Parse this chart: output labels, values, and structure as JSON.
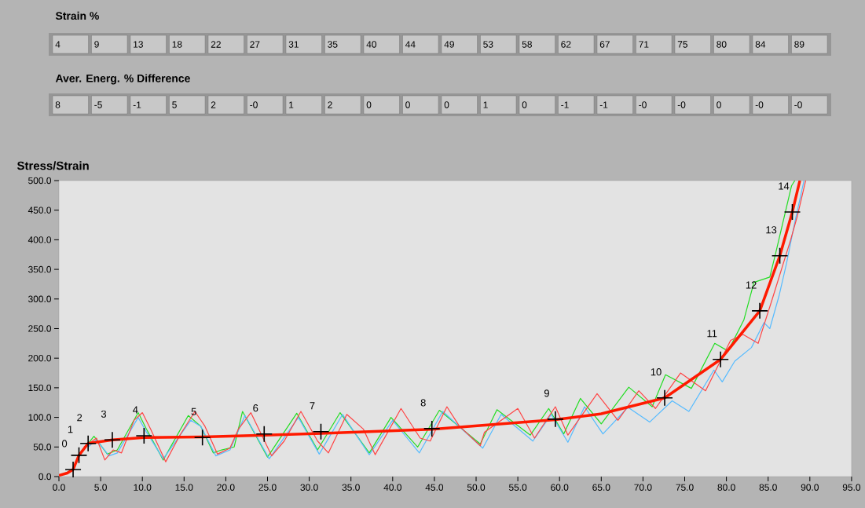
{
  "chart_data": [
    {
      "type": "other",
      "title": "Strain %",
      "annotations": [
        "4",
        "9",
        "13",
        "18",
        "22",
        "27",
        "31",
        "35",
        "40",
        "44",
        "49",
        "53",
        "58",
        "62",
        "67",
        "71",
        "75",
        "80",
        "84",
        "89"
      ]
    },
    {
      "type": "other",
      "title": "Aver. Energ. % Difference",
      "annotations": [
        "8",
        "-5",
        "-1",
        "5",
        "2",
        "-0",
        "1",
        "2",
        "0",
        "0",
        "0",
        "1",
        "0",
        "-1",
        "-1",
        "-0",
        "-0",
        "0",
        "-0",
        "-0"
      ]
    },
    {
      "type": "line",
      "title": "Stress/Strain",
      "xlim": [
        0,
        95
      ],
      "ylim": [
        0,
        500
      ],
      "xticks": [
        {
          "value": 0,
          "label": "0.0"
        },
        {
          "value": 5,
          "label": "5.0"
        },
        {
          "value": 10,
          "label": "10.0"
        },
        {
          "value": 15,
          "label": "15.0"
        },
        {
          "value": 20,
          "label": "20.0"
        },
        {
          "value": 25,
          "label": "25.0"
        },
        {
          "value": 30,
          "label": "30.0"
        },
        {
          "value": 35,
          "label": "35.0"
        },
        {
          "value": 40,
          "label": "40.0"
        },
        {
          "value": 45,
          "label": "45.0"
        },
        {
          "value": 50,
          "label": "50.0"
        },
        {
          "value": 55,
          "label": "55.0"
        },
        {
          "value": 60,
          "label": "60.0"
        },
        {
          "value": 65,
          "label": "65.0"
        },
        {
          "value": 70,
          "label": "70.0"
        },
        {
          "value": 75,
          "label": "75.0"
        },
        {
          "value": 80,
          "label": "80.0"
        },
        {
          "value": 85,
          "label": "85.0"
        },
        {
          "value": 90,
          "label": "90.0"
        },
        {
          "value": 95,
          "label": "95.0"
        }
      ],
      "yticks": [
        {
          "value": 0,
          "label": "0.0"
        },
        {
          "value": 50,
          "label": "50.0"
        },
        {
          "value": 100,
          "label": "100.0"
        },
        {
          "value": 150,
          "label": "150.0"
        },
        {
          "value": 200,
          "label": "200.0"
        },
        {
          "value": 250,
          "label": "250.0"
        },
        {
          "value": 300,
          "label": "300.0"
        },
        {
          "value": 350,
          "label": "350.0"
        },
        {
          "value": 400,
          "label": "400.0"
        },
        {
          "value": 450,
          "label": "450.0"
        },
        {
          "value": 500,
          "label": "500.0"
        }
      ],
      "series": [
        {
          "color": "#22dd22",
          "x": [
            3.5,
            4.2,
            5.8,
            7,
            9.5,
            10.5,
            12.5,
            15.5,
            17,
            18.5,
            19.5,
            21,
            22,
            25,
            28.5,
            31,
            33.7,
            37.2,
            39.8,
            43,
            45.6,
            50.5,
            52.5,
            56.5,
            58.7,
            60.5,
            62.5,
            65,
            68.3,
            71.1,
            72.7,
            75.8,
            78.6,
            80.2,
            82.1,
            83.3,
            85.2,
            85.9,
            87.8,
            88.2
          ],
          "values": [
            56,
            68,
            38,
            45,
            108,
            80,
            28,
            103,
            85,
            40,
            45,
            50,
            110,
            33,
            107,
            45,
            108,
            40,
            100,
            50,
            112,
            55,
            113,
            70,
            115,
            72,
            132,
            89,
            151,
            118,
            172,
            149,
            225,
            212,
            265,
            328,
            337,
            377,
            491,
            500
          ]
        },
        {
          "color": "#55bbff",
          "x": [
            3.5,
            4.5,
            6,
            7,
            9.5,
            10.5,
            12.5,
            15.8,
            17,
            18.8,
            20.5,
            22.3,
            25.2,
            28.7,
            31.2,
            34,
            37.2,
            40,
            43.2,
            46,
            50.8,
            53,
            56.8,
            59,
            61,
            63,
            65.2,
            68.2,
            70.8,
            73.5,
            75.5,
            78.5,
            79.5,
            81,
            83,
            84.5,
            85.2,
            86.3,
            87.2,
            88.2,
            89.3
          ],
          "values": [
            50,
            62,
            35,
            40,
            100,
            75,
            30,
            95,
            85,
            35,
            45,
            103,
            30,
            100,
            38,
            105,
            37,
            95,
            40,
            110,
            48,
            105,
            60,
            105,
            58,
            118,
            72,
            117,
            92,
            128,
            110,
            180,
            160,
            195,
            218,
            260,
            250,
            305,
            360,
            430,
            500
          ]
        },
        {
          "color": "#ff4444",
          "x": [
            3,
            4.5,
            5.5,
            6.5,
            7.5,
            9,
            10,
            11,
            12.8,
            14.5,
            16.3,
            17.5,
            19,
            20.5,
            21.5,
            23,
            25.5,
            27,
            29,
            31,
            32.3,
            34.5,
            36.5,
            37.9,
            41,
            43.3,
            44.5,
            46.5,
            48,
            50.5,
            51,
            55,
            57,
            59.5,
            61,
            64.5,
            67,
            69.5,
            71.5,
            74.5,
            77.5,
            80.5,
            82,
            83.8,
            85.5,
            87.7,
            88.5,
            89.5
          ],
          "values": [
            50,
            65,
            28,
            45,
            40,
            95,
            108,
            80,
            25,
            70,
            110,
            85,
            38,
            48,
            80,
            108,
            35,
            60,
            110,
            60,
            40,
            105,
            80,
            37,
            115,
            65,
            60,
            118,
            85,
            52,
            75,
            115,
            65,
            118,
            70,
            140,
            95,
            145,
            115,
            175,
            145,
            230,
            240,
            225,
            300,
            400,
            440,
            500
          ]
        },
        {
          "color": "#ff1a00",
          "x": [
            0,
            1,
            1.7,
            2.4,
            3.5,
            6.4,
            10.2,
            17.2,
            24.6,
            31.4,
            44.7,
            59.5,
            65,
            72.6,
            79.3,
            84,
            86.4,
            87.9,
            88.8
          ],
          "values": [
            2,
            6,
            12,
            36,
            56,
            62,
            66,
            67,
            70,
            73,
            80,
            96,
            106,
            133,
            198,
            280,
            373,
            447,
            500
          ]
        },
        {
          "type": "scatter",
          "marker": "cross",
          "color": "#000000",
          "x": [
            1.7,
            2.4,
            3.5,
            6.4,
            10.2,
            17.2,
            24.6,
            31.4,
            44.7,
            59.5,
            72.6,
            79.3,
            84,
            86.4,
            87.9
          ],
          "values": [
            12,
            36,
            56,
            62,
            69,
            66,
            72,
            76,
            81,
            97,
            133,
            198,
            280,
            373,
            447
          ]
        }
      ],
      "annotations": [
        {
          "text": "0",
          "x": 1.7,
          "y": 12
        },
        {
          "text": "1",
          "x": 2.4,
          "y": 36
        },
        {
          "text": "2",
          "x": 3.5,
          "y": 56
        },
        {
          "text": "3",
          "x": 6.4,
          "y": 62
        },
        {
          "text": "4",
          "x": 10.2,
          "y": 69
        },
        {
          "text": "5",
          "x": 17.2,
          "y": 66
        },
        {
          "text": "6",
          "x": 24.6,
          "y": 72
        },
        {
          "text": "7",
          "x": 31.4,
          "y": 76
        },
        {
          "text": "8",
          "x": 44.7,
          "y": 81
        },
        {
          "text": "9",
          "x": 59.5,
          "y": 97
        },
        {
          "text": "10",
          "x": 72.6,
          "y": 133
        },
        {
          "text": "11",
          "x": 79.3,
          "y": 198
        },
        {
          "text": "12",
          "x": 84,
          "y": 280
        },
        {
          "text": "13",
          "x": 86.4,
          "y": 373
        },
        {
          "text": "14",
          "x": 87.9,
          "y": 447
        }
      ]
    }
  ]
}
